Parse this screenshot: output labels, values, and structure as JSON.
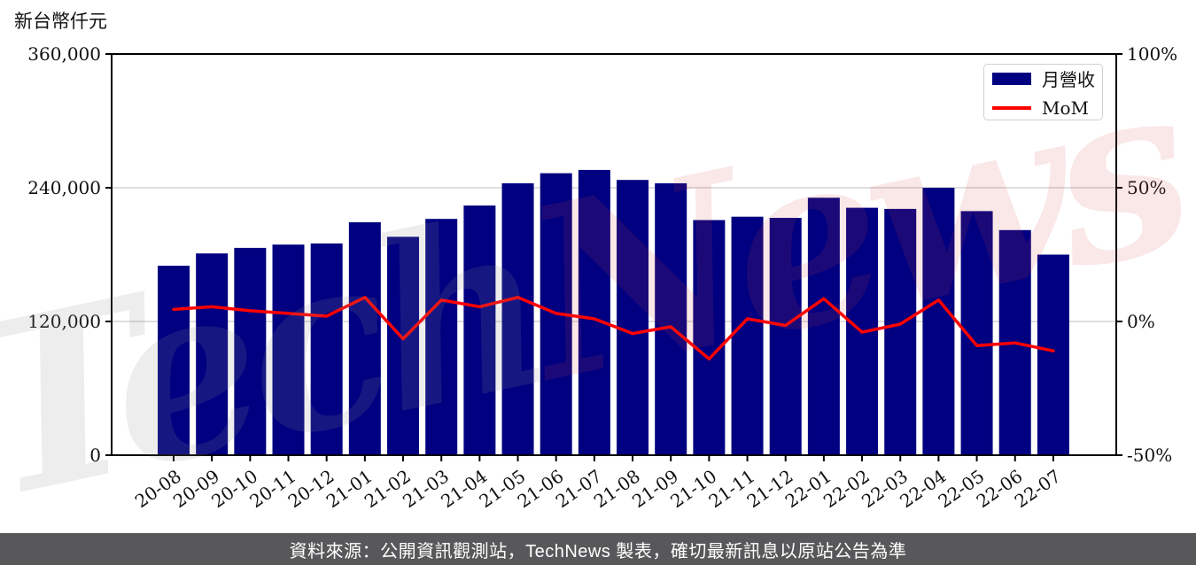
{
  "y_axis_unit": "新台幣仟元",
  "legend": {
    "bar_label": "月營收",
    "line_label": "MoM"
  },
  "caption": "資料來源：公開資訊觀測站，TechNews 製表，確切最新訊息以原站公告為準",
  "watermark": {
    "part1": "Tech",
    "part2": "News"
  },
  "colors": {
    "bar": "#000080",
    "line": "#ff0000",
    "grid": "#d9d9d9",
    "axis": "#000000",
    "tick_text": "#111111",
    "caption_bg": "#58585a",
    "caption_text": "#ffffff",
    "legend_border": "#d0d0d0",
    "watermark_gray": "rgba(145,145,145,0.16)",
    "watermark_red": "rgba(214,69,69,0.13)"
  },
  "chart_data": {
    "type": "bar",
    "combo_note": "bar series (monthly revenue, left axis) + line series (MoM %, right axis)",
    "title": "",
    "categories": [
      "20-08",
      "20-09",
      "20-10",
      "20-11",
      "20-12",
      "21-01",
      "21-02",
      "21-03",
      "21-04",
      "21-05",
      "21-06",
      "21-07",
      "21-08",
      "21-09",
      "21-10",
      "21-11",
      "21-12",
      "22-01",
      "22-02",
      "22-03",
      "22-04",
      "22-05",
      "22-06",
      "22-07"
    ],
    "series": [
      {
        "name": "月營收",
        "kind": "bar",
        "axis": "left",
        "unit": "新台幣仟元",
        "values": [
          170000,
          181000,
          186000,
          189000,
          190000,
          209000,
          196000,
          212000,
          224000,
          244000,
          253000,
          256000,
          247000,
          244000,
          211000,
          214000,
          213000,
          231000,
          222000,
          221000,
          240000,
          219000,
          202000,
          180000
        ]
      },
      {
        "name": "MoM",
        "kind": "line",
        "axis": "right",
        "unit": "%",
        "values": [
          4.5,
          5.5,
          4,
          3,
          2,
          9,
          -6.5,
          8,
          5.5,
          9,
          3,
          1,
          -4.5,
          -2,
          -14,
          1,
          -1.5,
          8.5,
          -4,
          -1,
          8,
          -9,
          -8,
          -11
        ]
      }
    ],
    "left_axis": {
      "label": "新台幣仟元",
      "range": [
        0,
        360000
      ],
      "tick_values": [
        0,
        120000,
        240000,
        360000
      ],
      "tick_labels": [
        "0",
        "120,000",
        "240,000",
        "360,000"
      ],
      "grid_values": [
        120000,
        240000
      ]
    },
    "right_axis": {
      "range": [
        -50,
        100
      ],
      "tick_values": [
        -50,
        0,
        50,
        100
      ],
      "tick_labels": [
        "-50%",
        "0%",
        "50%",
        "100%"
      ]
    },
    "grid": true,
    "legend_position": "top-right",
    "x_tick_rotation_deg": -35
  }
}
